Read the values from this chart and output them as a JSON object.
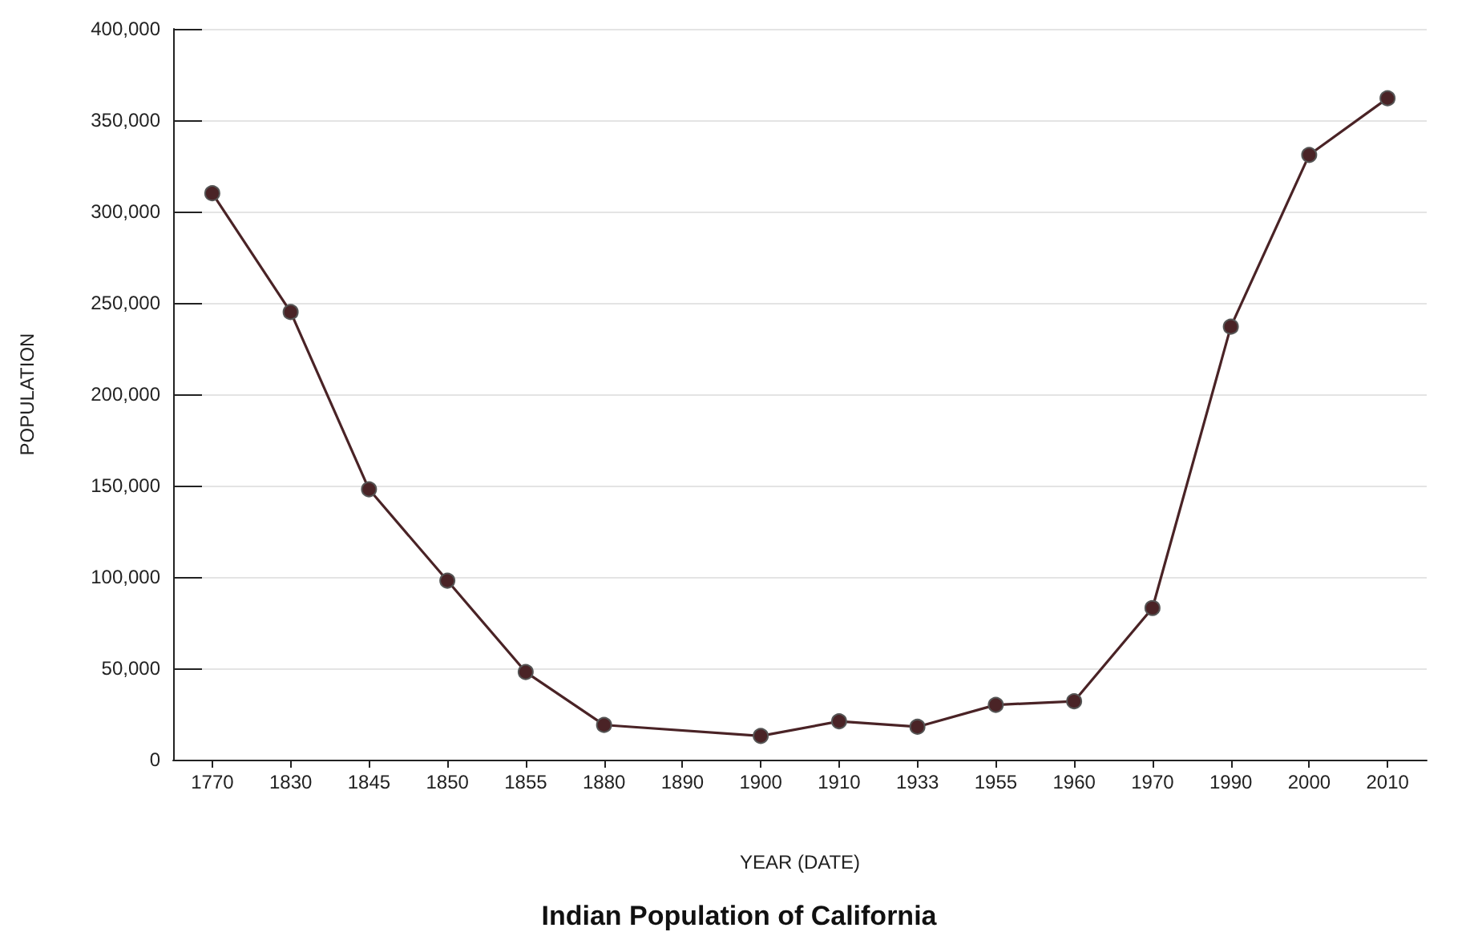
{
  "chart_data": {
    "type": "line",
    "title": "Indian Population of California",
    "xlabel": "YEAR (DATE)",
    "ylabel": "POPULATION",
    "categories": [
      "1770",
      "1830",
      "1845",
      "1850",
      "1855",
      "1880",
      "1890",
      "1900",
      "1910",
      "1933",
      "1955",
      "1960",
      "1970",
      "1990",
      "2000",
      "2010"
    ],
    "series": [
      {
        "color": "#4a2326",
        "values": [
          310000,
          245000,
          148000,
          98000,
          48000,
          19000,
          null,
          13000,
          21000,
          18000,
          30000,
          32000,
          83000,
          237000,
          331000,
          362000
        ]
      }
    ],
    "ylim": [
      0,
      400000
    ],
    "yticks": [
      0,
      {
        "value": 50000,
        "label": "50,000"
      },
      {
        "value": 100000,
        "label": "100,000"
      },
      {
        "value": 150000,
        "label": "150,000"
      },
      {
        "value": 200000,
        "label": "200,000"
      },
      {
        "value": 250000,
        "label": "250,000"
      },
      {
        "value": 300000,
        "label": "300,000"
      },
      {
        "value": 350000,
        "label": "350,000"
      },
      {
        "value": 400000,
        "label": "400,000"
      }
    ],
    "grid": "y",
    "marker": "circle",
    "line_style": "solid"
  }
}
